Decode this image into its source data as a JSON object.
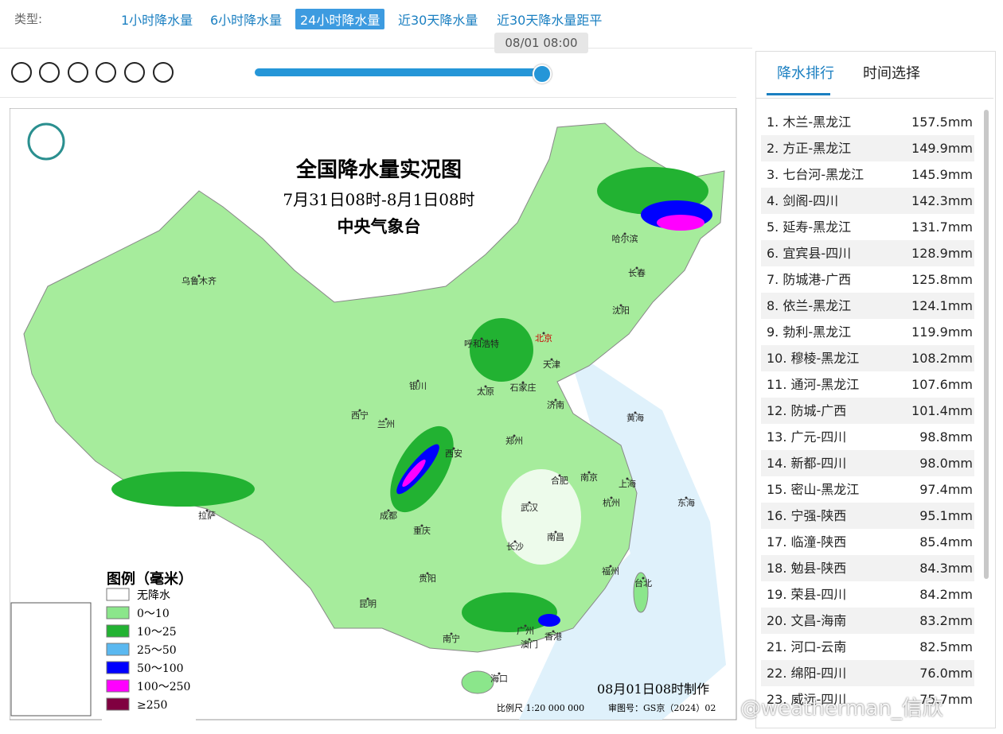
{
  "filter": {
    "label": "类型:",
    "tabs": [
      "1小时降水量",
      "6小时降水量",
      "24小时降水量",
      "近30天降水量",
      "近30天降水量距平"
    ],
    "active": 2
  },
  "timeline": {
    "current": "08/01 08:00"
  },
  "map": {
    "title": "全国降水量实况图",
    "period": "7月31日08时-8月1日08时",
    "issuer": "中央气象台",
    "legend_title": "图例（毫米）",
    "legend": [
      {
        "label": "无降水",
        "color": "#ffffff"
      },
      {
        "label": "0～10",
        "color": "#8be68b"
      },
      {
        "label": "10～25",
        "color": "#22b232"
      },
      {
        "label": "25～50",
        "color": "#5ab8f0"
      },
      {
        "label": "50～100",
        "color": "#0000ff"
      },
      {
        "label": "100～250",
        "color": "#ff00ff"
      },
      {
        "label": "≥250",
        "color": "#800040"
      }
    ],
    "cities": [
      "乌鲁木齐",
      "哈尔滨",
      "长春",
      "沈阳",
      "呼和浩特",
      "北京",
      "天津",
      "银川",
      "太原",
      "石家庄",
      "济南",
      "西宁",
      "兰州",
      "西安",
      "郑州",
      "合肥",
      "南京",
      "上海",
      "成都",
      "重庆",
      "武汉",
      "杭州",
      "拉萨",
      "长沙",
      "南昌",
      "贵阳",
      "福州",
      "台北",
      "昆明",
      "南宁",
      "广州",
      "香港",
      "澳门",
      "海口",
      "黄海",
      "东海"
    ],
    "made": "08月01日08时制作",
    "scale": "比例尺 1:20 000 000",
    "approval": "审图号：GS京（2024）02"
  },
  "ranking_panel": {
    "tabs": [
      "降水排行",
      "时间选择"
    ],
    "active": 0,
    "rows": [
      {
        "place": "1. 木兰-黑龙江",
        "value": "157.5mm"
      },
      {
        "place": "2. 方正-黑龙江",
        "value": "149.9mm"
      },
      {
        "place": "3. 七台河-黑龙江",
        "value": "145.9mm"
      },
      {
        "place": "4. 剑阁-四川",
        "value": "142.3mm"
      },
      {
        "place": "5. 延寿-黑龙江",
        "value": "131.7mm"
      },
      {
        "place": "6. 宜宾县-四川",
        "value": "128.9mm"
      },
      {
        "place": "7. 防城港-广西",
        "value": "125.8mm"
      },
      {
        "place": "8. 依兰-黑龙江",
        "value": "124.1mm"
      },
      {
        "place": "9. 勃利-黑龙江",
        "value": "119.9mm"
      },
      {
        "place": "10. 穆棱-黑龙江",
        "value": "108.2mm"
      },
      {
        "place": "11. 通河-黑龙江",
        "value": "107.6mm"
      },
      {
        "place": "12. 防城-广西",
        "value": "101.4mm"
      },
      {
        "place": "13. 广元-四川",
        "value": "98.8mm"
      },
      {
        "place": "14. 新都-四川",
        "value": "98.0mm"
      },
      {
        "place": "15. 密山-黑龙江",
        "value": "97.4mm"
      },
      {
        "place": "16. 宁强-陕西",
        "value": "95.1mm"
      },
      {
        "place": "17. 临潼-陕西",
        "value": "85.4mm"
      },
      {
        "place": "18. 勉县-陕西",
        "value": "84.3mm"
      },
      {
        "place": "19. 荣县-四川",
        "value": "84.2mm"
      },
      {
        "place": "20. 文昌-海南",
        "value": "83.2mm"
      },
      {
        "place": "21. 河口-云南",
        "value": "82.5mm"
      },
      {
        "place": "22. 绵阳-四川",
        "value": "76.0mm"
      },
      {
        "place": "23. 威远-四川",
        "value": "75.7mm"
      }
    ]
  },
  "watermark": "@weatherman_信欣"
}
